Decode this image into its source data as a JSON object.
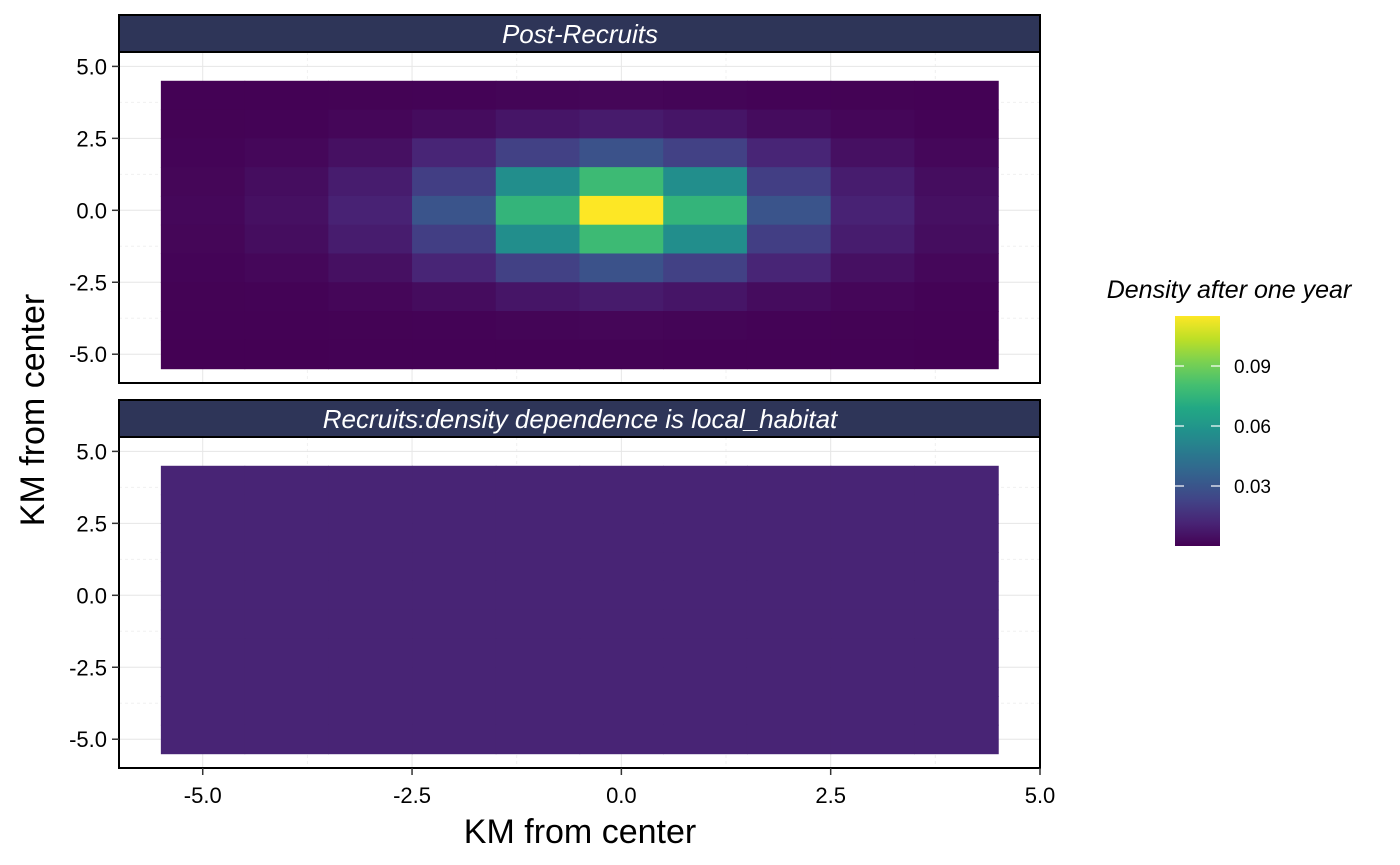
{
  "chart_data": {
    "type": "heatmap",
    "xlabel": "KM from center",
    "ylabel": "KM from center",
    "x_ticks": [
      "-5.0",
      "-2.5",
      "0.0",
      "2.5",
      "5.0"
    ],
    "y_ticks": [
      "5.0",
      "2.5",
      "0.0",
      "-2.5",
      "-5.0"
    ],
    "xlim": [
      -6,
      5
    ],
    "grid_x_centers": [
      -5,
      -4,
      -3,
      -2,
      -1,
      0,
      1,
      2,
      3,
      4
    ],
    "grid_y_centers": [
      4,
      3,
      2,
      1,
      0,
      -1,
      -2,
      -3,
      -4,
      -5
    ],
    "legend": {
      "title": "Density after one year",
      "colormap": "viridis",
      "range": [
        0,
        0.115
      ],
      "ticks": [
        0.03,
        0.06,
        0.09
      ],
      "tick_labels": [
        "0.03",
        "0.06",
        "0.09"
      ],
      "placement": "right"
    },
    "panels": [
      {
        "title": "Post-Recruits",
        "ylim": [
          -6,
          5.5
        ],
        "rows": [
          [
            0.0002,
            0.0003,
            0.0005,
            0.0008,
            0.0012,
            0.0015,
            0.0012,
            0.0008,
            0.0005,
            0.0003
          ],
          [
            0.0005,
            0.0008,
            0.0018,
            0.0035,
            0.0065,
            0.0085,
            0.0065,
            0.0035,
            0.0018,
            0.0008
          ],
          [
            0.0009,
            0.002,
            0.005,
            0.012,
            0.022,
            0.029,
            0.022,
            0.012,
            0.005,
            0.002
          ],
          [
            0.0015,
            0.004,
            0.009,
            0.021,
            0.056,
            0.078,
            0.056,
            0.021,
            0.009,
            0.004
          ],
          [
            0.002,
            0.005,
            0.011,
            0.03,
            0.075,
            0.115,
            0.075,
            0.03,
            0.011,
            0.005
          ],
          [
            0.0015,
            0.004,
            0.009,
            0.021,
            0.056,
            0.078,
            0.056,
            0.021,
            0.009,
            0.004
          ],
          [
            0.0009,
            0.002,
            0.005,
            0.012,
            0.022,
            0.029,
            0.022,
            0.012,
            0.005,
            0.002
          ],
          [
            0.0005,
            0.0008,
            0.0018,
            0.0035,
            0.0065,
            0.0085,
            0.0065,
            0.0035,
            0.0018,
            0.0008
          ],
          [
            0.0002,
            0.0003,
            0.0005,
            0.0008,
            0.0012,
            0.0015,
            0.0012,
            0.0008,
            0.0005,
            0.0003
          ],
          [
            0.0001,
            0.0001,
            0.0002,
            0.0003,
            0.0004,
            0.0005,
            0.0004,
            0.0003,
            0.0002,
            0.0001
          ]
        ]
      },
      {
        "title": "Recruits:density dependence is local_habitat",
        "ylim": [
          -6,
          5.5
        ],
        "uniform_value": 0.0115
      }
    ]
  }
}
